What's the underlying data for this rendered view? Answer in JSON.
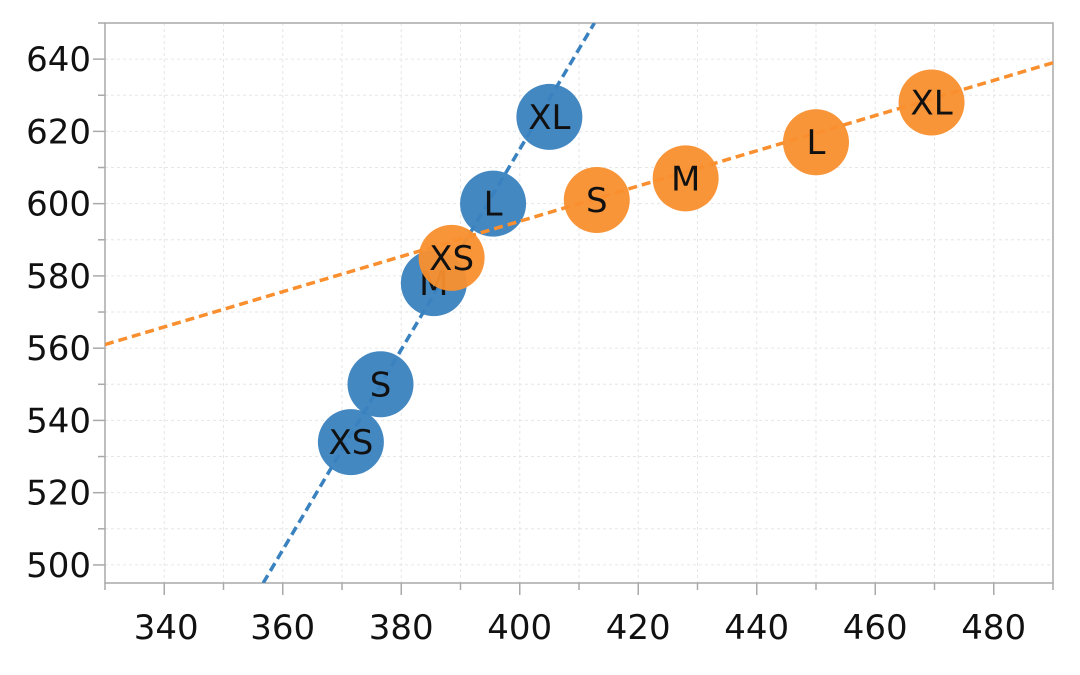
{
  "chart_data": {
    "type": "scatter",
    "title": "",
    "xlabel": "",
    "ylabel": "",
    "xlim": [
      330,
      490
    ],
    "ylim": [
      495,
      650
    ],
    "x_ticks": [
      340,
      360,
      380,
      400,
      420,
      440,
      460,
      480
    ],
    "y_ticks": [
      500,
      520,
      540,
      560,
      580,
      600,
      620,
      640
    ],
    "grid": true,
    "legend": "none",
    "series": [
      {
        "color": "#3a82bf",
        "points": [
          {
            "label": "XS",
            "x": 371.5,
            "y": 534
          },
          {
            "label": "S",
            "x": 376.5,
            "y": 550
          },
          {
            "label": "M",
            "x": 385.5,
            "y": 578
          },
          {
            "label": "L",
            "x": 395.5,
            "y": 600
          },
          {
            "label": "XL",
            "x": 405,
            "y": 624
          }
        ],
        "trendline": {
          "x1": 356.7,
          "y1": 495,
          "x2": 412.6,
          "y2": 650
        }
      },
      {
        "color": "#f98f2e",
        "points": [
          {
            "label": "XS",
            "x": 388.5,
            "y": 585
          },
          {
            "label": "S",
            "x": 413,
            "y": 601
          },
          {
            "label": "M",
            "x": 428,
            "y": 607
          },
          {
            "label": "L",
            "x": 450,
            "y": 617
          },
          {
            "label": "XL",
            "x": 469.5,
            "y": 628
          }
        ],
        "trendline": {
          "x1": 330,
          "y1": 561,
          "x2": 490,
          "y2": 639
        }
      }
    ]
  }
}
